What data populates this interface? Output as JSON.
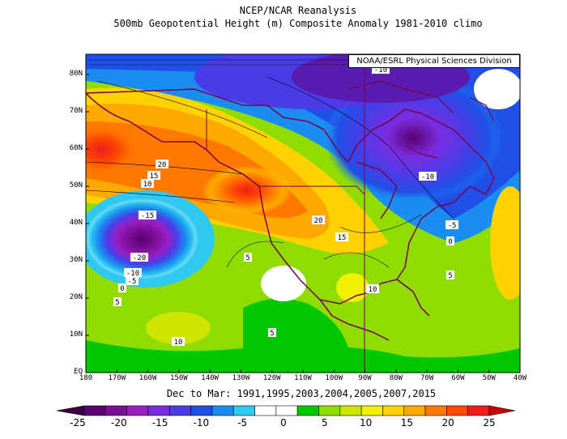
{
  "title": "NCEP/NCAR Reanalysis",
  "subtitle": "500mb Geopotential Height (m) Composite Anomaly 1981-2010 climo",
  "credit": "NOAA/ESRL Physical Sciences Division",
  "period": "Dec to Mar: 1991,1995,2003,2004,2005,2007,2015",
  "lat_labels": [
    "EQ",
    "10N",
    "20N",
    "30N",
    "40N",
    "50N",
    "60N",
    "70N",
    "80N"
  ],
  "lon_labels": [
    "180",
    "170W",
    "160W",
    "150W",
    "140W",
    "130W",
    "120W",
    "110W",
    "100W",
    "90W",
    "80W",
    "70W",
    "60W",
    "50W",
    "40W"
  ],
  "colorbar": {
    "ticks": [
      "-25",
      "-20",
      "-15",
      "-10",
      "-5",
      "0",
      "5",
      "10",
      "15",
      "20",
      "25"
    ],
    "colors": [
      "#5a0070",
      "#7b0f95",
      "#9a1ec2",
      "#7a2de0",
      "#4a3de8",
      "#2050e8",
      "#1a8ef0",
      "#2ec8f0",
      "#ffffff",
      "#ffffff",
      "#00c800",
      "#90dc00",
      "#cde600",
      "#f0f000",
      "#ffd200",
      "#ffa800",
      "#ff7800",
      "#ff4800",
      "#ee1c1c"
    ]
  },
  "contour_labels": [
    {
      "text": "-10"
    },
    {
      "text": "-10"
    },
    {
      "text": "-5"
    },
    {
      "text": "0"
    },
    {
      "text": "5"
    },
    {
      "text": "20"
    },
    {
      "text": "15"
    },
    {
      "text": "10"
    },
    {
      "text": "-15"
    },
    {
      "text": "-20"
    },
    {
      "text": "-10"
    },
    {
      "text": "-5"
    },
    {
      "text": "0"
    },
    {
      "text": "5"
    },
    {
      "text": "5"
    },
    {
      "text": "20"
    },
    {
      "text": "15"
    },
    {
      "text": "10"
    },
    {
      "text": "10"
    },
    {
      "text": "5"
    }
  ]
}
